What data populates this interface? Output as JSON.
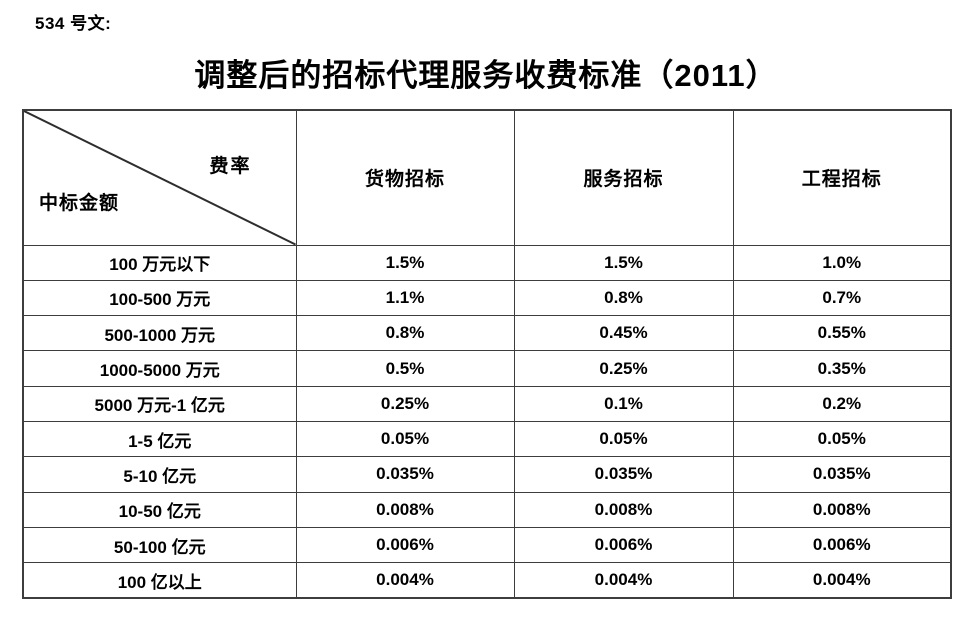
{
  "doc_label": "534 号文:",
  "title": "调整后的招标代理服务收费标准（2011）",
  "table": {
    "corner": {
      "top_right": "费率",
      "bottom_left": "中标金额"
    },
    "columns": [
      "货物招标",
      "服务招标",
      "工程招标"
    ],
    "rows": [
      {
        "label": "100 万元以下",
        "values": [
          "1.5%",
          "1.5%",
          "1.0%"
        ]
      },
      {
        "label": "100-500 万元",
        "values": [
          "1.1%",
          "0.8%",
          "0.7%"
        ]
      },
      {
        "label": "500-1000 万元",
        "values": [
          "0.8%",
          "0.45%",
          "0.55%"
        ]
      },
      {
        "label": "1000-5000 万元",
        "values": [
          "0.5%",
          "0.25%",
          "0.35%"
        ]
      },
      {
        "label": "5000 万元-1 亿元",
        "values": [
          "0.25%",
          "0.1%",
          "0.2%"
        ]
      },
      {
        "label": "1-5 亿元",
        "values": [
          "0.05%",
          "0.05%",
          "0.05%"
        ]
      },
      {
        "label": "5-10 亿元",
        "values": [
          "0.035%",
          "0.035%",
          "0.035%"
        ]
      },
      {
        "label": "10-50 亿元",
        "values": [
          "0.008%",
          "0.008%",
          "0.008%"
        ]
      },
      {
        "label": "50-100 亿元",
        "values": [
          "0.006%",
          "0.006%",
          "0.006%"
        ]
      },
      {
        "label": "100 亿以上",
        "values": [
          "0.004%",
          "0.004%",
          "0.004%"
        ]
      }
    ]
  },
  "colors": {
    "text": "#000000",
    "border": "#3d3d3d",
    "background": "#ffffff"
  }
}
